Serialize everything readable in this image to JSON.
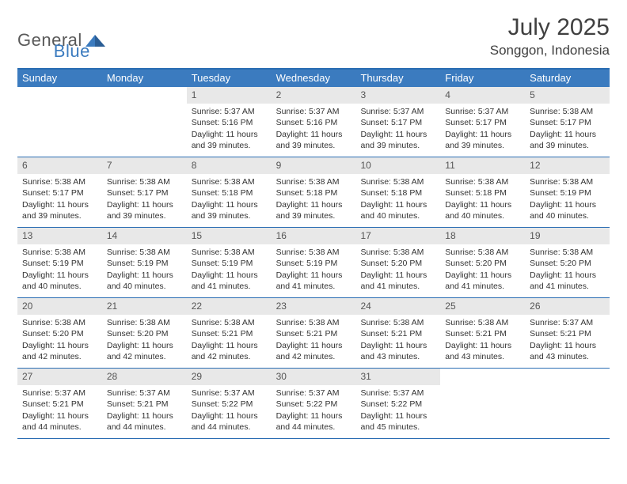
{
  "logo": {
    "part1": "General",
    "part2": "Blue"
  },
  "title": "July 2025",
  "location": "Songgon, Indonesia",
  "colors": {
    "header_bg": "#3b7bbf",
    "header_text": "#ffffff",
    "rule": "#2a6db3",
    "daynum_bg": "#e8e8e8",
    "body_text": "#333333",
    "logo_gray": "#595959",
    "logo_blue": "#3b7bbf"
  },
  "day_headers": [
    "Sunday",
    "Monday",
    "Tuesday",
    "Wednesday",
    "Thursday",
    "Friday",
    "Saturday"
  ],
  "weeks": [
    [
      {
        "empty": true
      },
      {
        "empty": true
      },
      {
        "n": "1",
        "sr": "5:37 AM",
        "ss": "5:16 PM",
        "dl": "11 hours and 39 minutes."
      },
      {
        "n": "2",
        "sr": "5:37 AM",
        "ss": "5:16 PM",
        "dl": "11 hours and 39 minutes."
      },
      {
        "n": "3",
        "sr": "5:37 AM",
        "ss": "5:17 PM",
        "dl": "11 hours and 39 minutes."
      },
      {
        "n": "4",
        "sr": "5:37 AM",
        "ss": "5:17 PM",
        "dl": "11 hours and 39 minutes."
      },
      {
        "n": "5",
        "sr": "5:38 AM",
        "ss": "5:17 PM",
        "dl": "11 hours and 39 minutes."
      }
    ],
    [
      {
        "n": "6",
        "sr": "5:38 AM",
        "ss": "5:17 PM",
        "dl": "11 hours and 39 minutes."
      },
      {
        "n": "7",
        "sr": "5:38 AM",
        "ss": "5:17 PM",
        "dl": "11 hours and 39 minutes."
      },
      {
        "n": "8",
        "sr": "5:38 AM",
        "ss": "5:18 PM",
        "dl": "11 hours and 39 minutes."
      },
      {
        "n": "9",
        "sr": "5:38 AM",
        "ss": "5:18 PM",
        "dl": "11 hours and 39 minutes."
      },
      {
        "n": "10",
        "sr": "5:38 AM",
        "ss": "5:18 PM",
        "dl": "11 hours and 40 minutes."
      },
      {
        "n": "11",
        "sr": "5:38 AM",
        "ss": "5:18 PM",
        "dl": "11 hours and 40 minutes."
      },
      {
        "n": "12",
        "sr": "5:38 AM",
        "ss": "5:19 PM",
        "dl": "11 hours and 40 minutes."
      }
    ],
    [
      {
        "n": "13",
        "sr": "5:38 AM",
        "ss": "5:19 PM",
        "dl": "11 hours and 40 minutes."
      },
      {
        "n": "14",
        "sr": "5:38 AM",
        "ss": "5:19 PM",
        "dl": "11 hours and 40 minutes."
      },
      {
        "n": "15",
        "sr": "5:38 AM",
        "ss": "5:19 PM",
        "dl": "11 hours and 41 minutes."
      },
      {
        "n": "16",
        "sr": "5:38 AM",
        "ss": "5:19 PM",
        "dl": "11 hours and 41 minutes."
      },
      {
        "n": "17",
        "sr": "5:38 AM",
        "ss": "5:20 PM",
        "dl": "11 hours and 41 minutes."
      },
      {
        "n": "18",
        "sr": "5:38 AM",
        "ss": "5:20 PM",
        "dl": "11 hours and 41 minutes."
      },
      {
        "n": "19",
        "sr": "5:38 AM",
        "ss": "5:20 PM",
        "dl": "11 hours and 41 minutes."
      }
    ],
    [
      {
        "n": "20",
        "sr": "5:38 AM",
        "ss": "5:20 PM",
        "dl": "11 hours and 42 minutes."
      },
      {
        "n": "21",
        "sr": "5:38 AM",
        "ss": "5:20 PM",
        "dl": "11 hours and 42 minutes."
      },
      {
        "n": "22",
        "sr": "5:38 AM",
        "ss": "5:21 PM",
        "dl": "11 hours and 42 minutes."
      },
      {
        "n": "23",
        "sr": "5:38 AM",
        "ss": "5:21 PM",
        "dl": "11 hours and 42 minutes."
      },
      {
        "n": "24",
        "sr": "5:38 AM",
        "ss": "5:21 PM",
        "dl": "11 hours and 43 minutes."
      },
      {
        "n": "25",
        "sr": "5:38 AM",
        "ss": "5:21 PM",
        "dl": "11 hours and 43 minutes."
      },
      {
        "n": "26",
        "sr": "5:37 AM",
        "ss": "5:21 PM",
        "dl": "11 hours and 43 minutes."
      }
    ],
    [
      {
        "n": "27",
        "sr": "5:37 AM",
        "ss": "5:21 PM",
        "dl": "11 hours and 44 minutes."
      },
      {
        "n": "28",
        "sr": "5:37 AM",
        "ss": "5:21 PM",
        "dl": "11 hours and 44 minutes."
      },
      {
        "n": "29",
        "sr": "5:37 AM",
        "ss": "5:22 PM",
        "dl": "11 hours and 44 minutes."
      },
      {
        "n": "30",
        "sr": "5:37 AM",
        "ss": "5:22 PM",
        "dl": "11 hours and 44 minutes."
      },
      {
        "n": "31",
        "sr": "5:37 AM",
        "ss": "5:22 PM",
        "dl": "11 hours and 45 minutes."
      },
      {
        "empty": true
      },
      {
        "empty": true
      }
    ]
  ],
  "labels": {
    "sunrise": "Sunrise: ",
    "sunset": "Sunset: ",
    "daylight": "Daylight: "
  }
}
